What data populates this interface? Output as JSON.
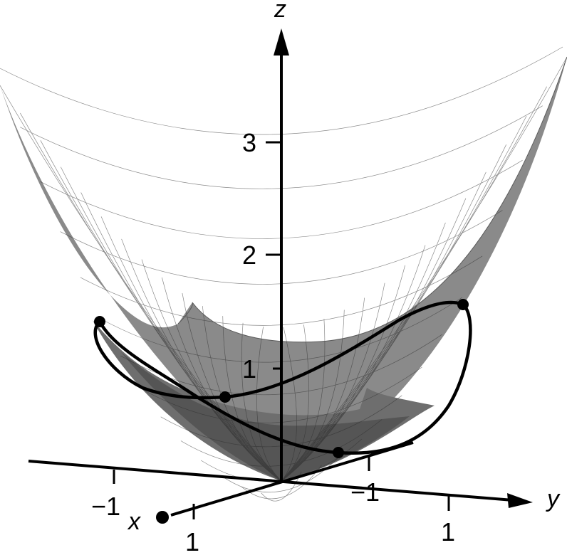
{
  "axes": {
    "x": {
      "name": "x",
      "ticks": [
        "1",
        "−1"
      ]
    },
    "y": {
      "name": "y",
      "ticks": [
        "1",
        "−1"
      ]
    },
    "z": {
      "name": "z",
      "ticks": [
        "1",
        "2",
        "3"
      ]
    }
  },
  "colors": {
    "surface_outer": "#8a8a8a",
    "surface_inner": "#6e6e6e",
    "surface_bottom": "#555555",
    "mesh": "#2c2c2c",
    "curve": "#000000",
    "axis": "#000000"
  }
}
